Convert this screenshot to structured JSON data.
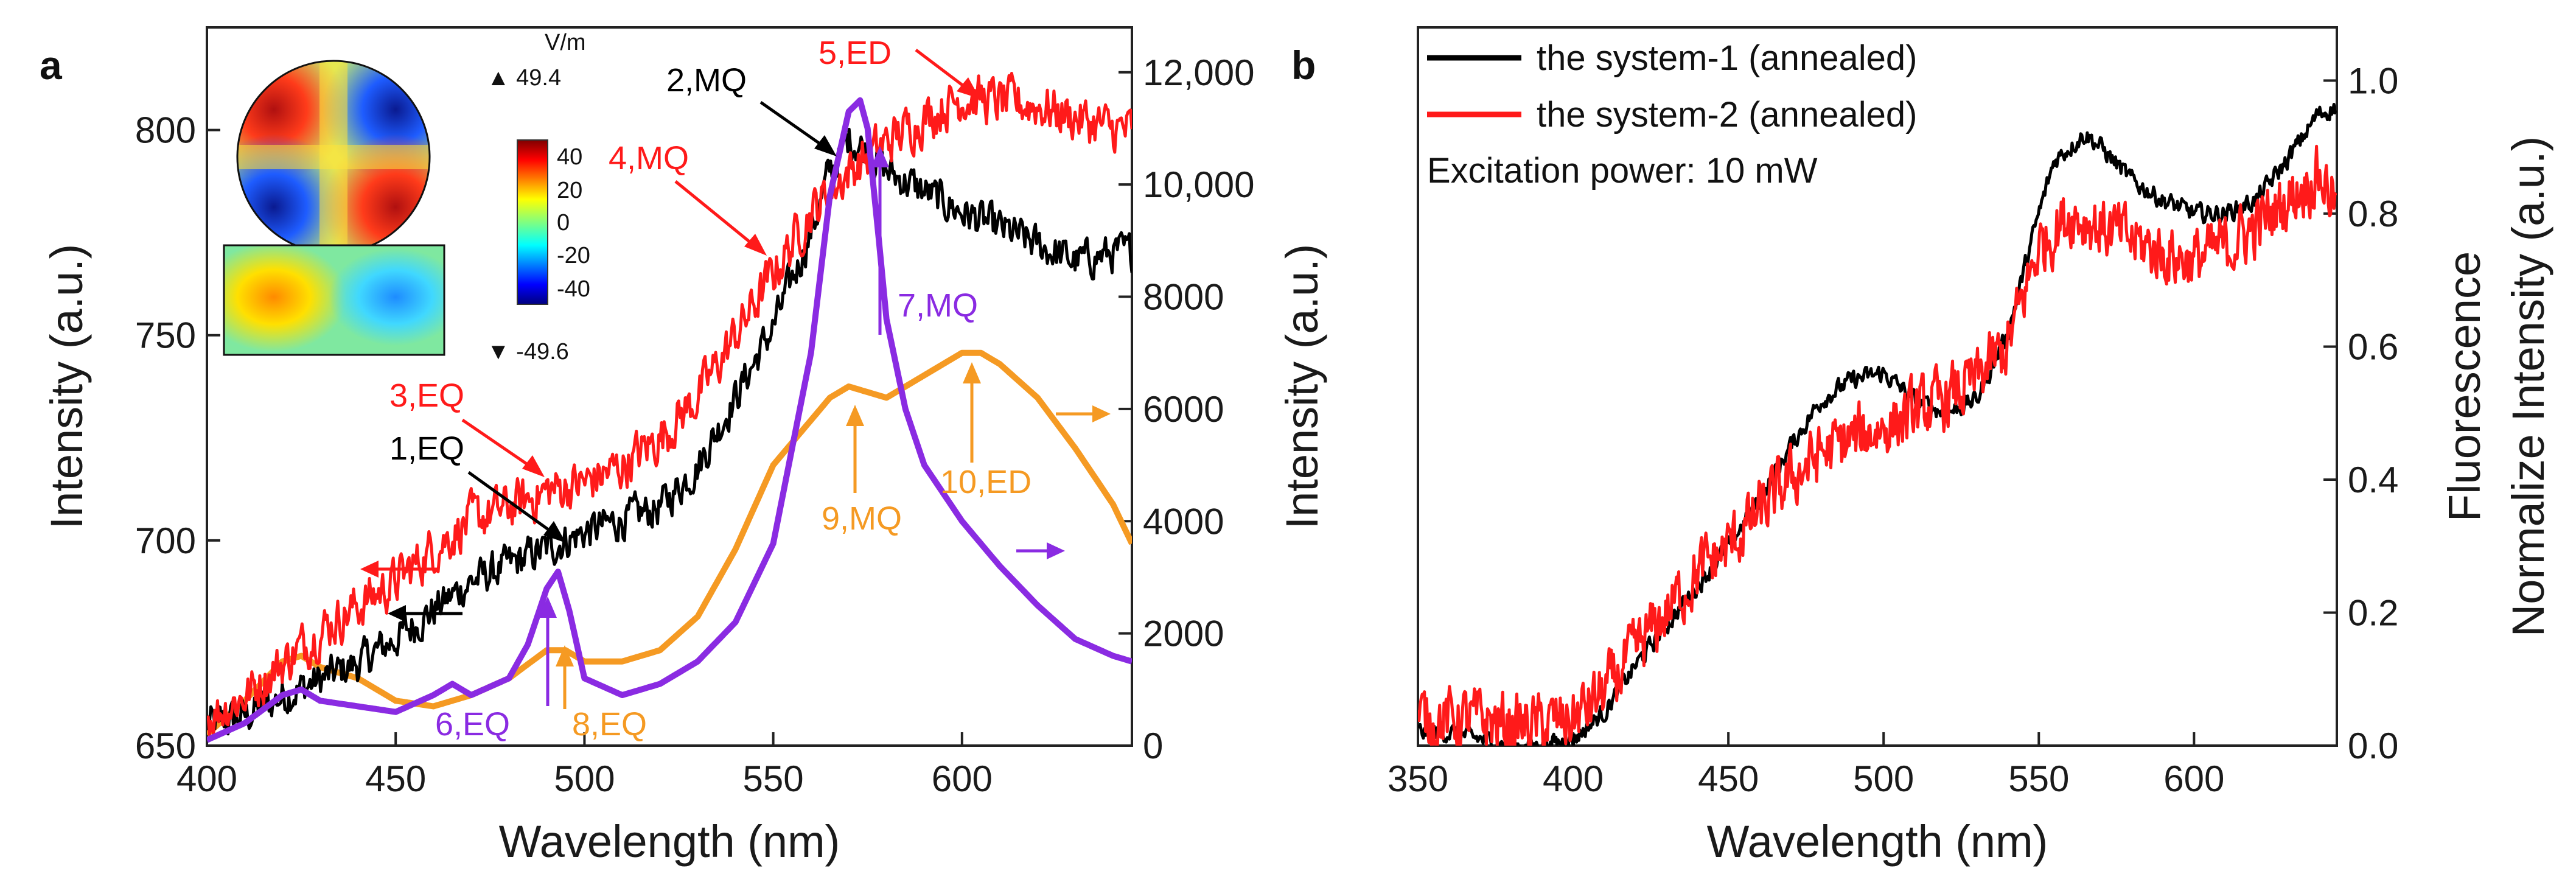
{
  "panels": {
    "a": {
      "label": "a",
      "xlabel": "Wavelength (nm)",
      "ylabel_left": "Intensity (a.u.)",
      "ylabel_right": "Intensity (a.u.)",
      "inset": {
        "unit": "V/m",
        "max_label": "▲ 49.4",
        "min_label": "▼ -49.6",
        "colorbar_ticks": [
          "40",
          "20",
          "0",
          "-20",
          "-40"
        ]
      },
      "annotations": {
        "a1": "1,EQ",
        "a2": "2,MQ",
        "a3": "3,EQ",
        "a4": "4,MQ",
        "a5": "5,ED",
        "a6": "6,EQ",
        "a7": "7,MQ",
        "a8": "8,EQ",
        "a9": "9,MQ",
        "a10": "10,ED"
      }
    },
    "b": {
      "label": "b",
      "xlabel": "Wavelength (nm)",
      "ylabel_line1": "Fluorescence",
      "ylabel_line2": "Normalize Intensity (a.u.)",
      "legend": [
        "the system-1 (annealed)",
        "the system-2 (annealed)"
      ],
      "note": "Excitation power: 10 mW"
    }
  },
  "colors": {
    "black": "#000000",
    "red": "#ff1a1a",
    "purple": "#8a2be2",
    "orange": "#f59a23"
  },
  "chart_data": [
    {
      "type": "line",
      "panel": "a",
      "xlabel": "Wavelength (nm)",
      "ylabel": "Intensity (a.u.)",
      "xlim": [
        400,
        645
      ],
      "ylim_left": [
        650,
        825
      ],
      "ylim_right": [
        0,
        12800
      ],
      "xticks": [
        400,
        450,
        500,
        550,
        600
      ],
      "yticks_left": [
        650,
        700,
        750,
        800
      ],
      "yticks_right": [
        0,
        2000,
        4000,
        6000,
        8000,
        10000,
        12000
      ],
      "ytick_labels_right": [
        "0",
        "2000",
        "4000",
        "6000",
        "8000",
        "10,000",
        "12,000"
      ],
      "series": [
        {
          "name": "black (left axis)",
          "axis": "left",
          "color": "#000000",
          "noise": 4,
          "x": [
            400,
            410,
            420,
            430,
            440,
            450,
            460,
            470,
            480,
            490,
            500,
            510,
            520,
            530,
            540,
            550,
            560,
            565,
            570,
            575,
            580,
            590,
            600,
            610,
            620,
            630,
            640,
            645
          ],
          "y": [
            655,
            657,
            662,
            666,
            670,
            676,
            683,
            690,
            694,
            698,
            702,
            705,
            708,
            718,
            735,
            752,
            775,
            790,
            798,
            795,
            790,
            785,
            780,
            776,
            772,
            768,
            770,
            770
          ]
        },
        {
          "name": "red (left axis)",
          "axis": "left",
          "color": "#ff1a1a",
          "noise": 5,
          "x": [
            400,
            410,
            420,
            430,
            440,
            450,
            460,
            470,
            480,
            490,
            500,
            510,
            520,
            530,
            540,
            550,
            560,
            570,
            580,
            590,
            600,
            610,
            620,
            630,
            640,
            645
          ],
          "y": [
            657,
            662,
            670,
            678,
            684,
            690,
            698,
            705,
            708,
            712,
            714,
            718,
            725,
            735,
            750,
            765,
            780,
            790,
            797,
            803,
            808,
            807,
            806,
            803,
            800,
            800
          ]
        },
        {
          "name": "purple (right axis)",
          "axis": "right",
          "color": "#8a2be2",
          "noise": 0,
          "x": [
            400,
            410,
            420,
            425,
            430,
            440,
            450,
            460,
            465,
            470,
            480,
            485,
            490,
            493,
            496,
            500,
            510,
            520,
            530,
            540,
            550,
            560,
            565,
            570,
            573,
            575,
            578,
            580,
            585,
            590,
            600,
            610,
            620,
            630,
            640,
            645
          ],
          "y": [
            100,
            400,
            900,
            1000,
            800,
            700,
            600,
            900,
            1100,
            900,
            1200,
            1800,
            2800,
            3100,
            2400,
            1200,
            900,
            1100,
            1500,
            2200,
            3600,
            7000,
            9800,
            11300,
            11500,
            11000,
            9000,
            7600,
            6000,
            5000,
            4000,
            3200,
            2500,
            1900,
            1600,
            1500
          ]
        },
        {
          "name": "orange (right axis)",
          "axis": "right",
          "color": "#f59a23",
          "noise": 0,
          "x": [
            400,
            410,
            420,
            425,
            430,
            440,
            450,
            460,
            470,
            480,
            490,
            495,
            500,
            510,
            520,
            530,
            540,
            550,
            560,
            565,
            570,
            575,
            580,
            585,
            590,
            600,
            605,
            610,
            620,
            630,
            640,
            645
          ],
          "y": [
            200,
            800,
            1500,
            1600,
            1400,
            1200,
            800,
            700,
            900,
            1200,
            1700,
            1700,
            1500,
            1500,
            1700,
            2300,
            3500,
            5000,
            5800,
            6200,
            6400,
            6300,
            6200,
            6400,
            6600,
            7000,
            7000,
            6800,
            6200,
            5300,
            4300,
            3600
          ]
        }
      ]
    },
    {
      "type": "line",
      "panel": "b",
      "xlabel": "Wavelength (nm)",
      "ylabel": "Fluorescence Normalize Intensity (a.u.)",
      "xlim": [
        350,
        646
      ],
      "ylim": [
        0,
        1.08
      ],
      "xticks": [
        350,
        400,
        450,
        500,
        550,
        600
      ],
      "yticks": [
        0.0,
        0.2,
        0.4,
        0.6,
        0.8,
        1.0
      ],
      "ytick_labels": [
        "0.0",
        "0.2",
        "0.4",
        "0.6",
        "0.8",
        "1.0"
      ],
      "series": [
        {
          "name": "the system-1 (annealed)",
          "color": "#000000",
          "noise": 0.012,
          "x": [
            350,
            360,
            370,
            380,
            390,
            400,
            410,
            420,
            430,
            440,
            450,
            460,
            470,
            480,
            490,
            500,
            510,
            520,
            530,
            540,
            550,
            555,
            560,
            565,
            570,
            580,
            590,
            600,
            610,
            620,
            630,
            640,
            646
          ],
          "y": [
            0.02,
            0.02,
            0.01,
            0.0,
            0.0,
            0.01,
            0.05,
            0.12,
            0.18,
            0.24,
            0.3,
            0.37,
            0.45,
            0.52,
            0.55,
            0.56,
            0.52,
            0.5,
            0.52,
            0.62,
            0.8,
            0.88,
            0.9,
            0.92,
            0.9,
            0.85,
            0.82,
            0.8,
            0.8,
            0.82,
            0.88,
            0.95,
            0.96
          ]
        },
        {
          "name": "the system-2 (annealed)",
          "color": "#ff1a1a",
          "noise": 0.04,
          "x": [
            350,
            360,
            370,
            380,
            390,
            400,
            410,
            420,
            430,
            440,
            450,
            460,
            470,
            480,
            490,
            500,
            510,
            520,
            530,
            540,
            550,
            560,
            570,
            580,
            590,
            600,
            610,
            620,
            630,
            640,
            646
          ],
          "y": [
            0.04,
            0.04,
            0.04,
            0.03,
            0.03,
            0.04,
            0.08,
            0.14,
            0.2,
            0.26,
            0.3,
            0.35,
            0.4,
            0.44,
            0.46,
            0.48,
            0.5,
            0.52,
            0.55,
            0.6,
            0.75,
            0.8,
            0.78,
            0.76,
            0.74,
            0.73,
            0.75,
            0.78,
            0.82,
            0.86,
            0.82
          ]
        }
      ]
    }
  ]
}
